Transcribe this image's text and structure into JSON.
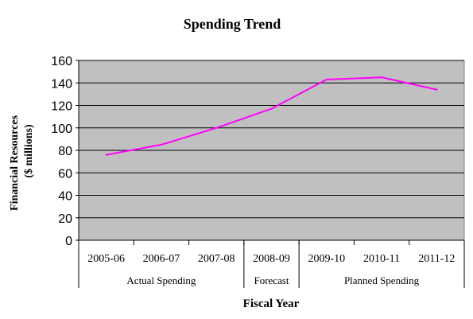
{
  "chart_data": {
    "type": "line",
    "title": "Spending Trend",
    "xlabel": "Fiscal Year",
    "ylabel_lines": [
      "Financial Resources",
      "($ millions)"
    ],
    "categories": [
      "2005-06",
      "2006-07",
      "2007-08",
      "2008-09",
      "2009-10",
      "2010-11",
      "2011-12"
    ],
    "series": [
      {
        "values": [
          76,
          85,
          100,
          117,
          143,
          145,
          134
        ]
      }
    ],
    "ylim": [
      0,
      160
    ],
    "yticks": [
      0,
      20,
      40,
      60,
      80,
      100,
      120,
      140,
      160
    ],
    "grid": true,
    "groups": [
      {
        "label": "Actual Spending",
        "count": 3
      },
      {
        "label": "Forecast",
        "count": 1
      },
      {
        "label": "Planned Spending",
        "count": 3
      }
    ],
    "colors": {
      "plot_background": "#C0C0C0",
      "line": "#FF00FF",
      "grid": "#000000"
    }
  }
}
